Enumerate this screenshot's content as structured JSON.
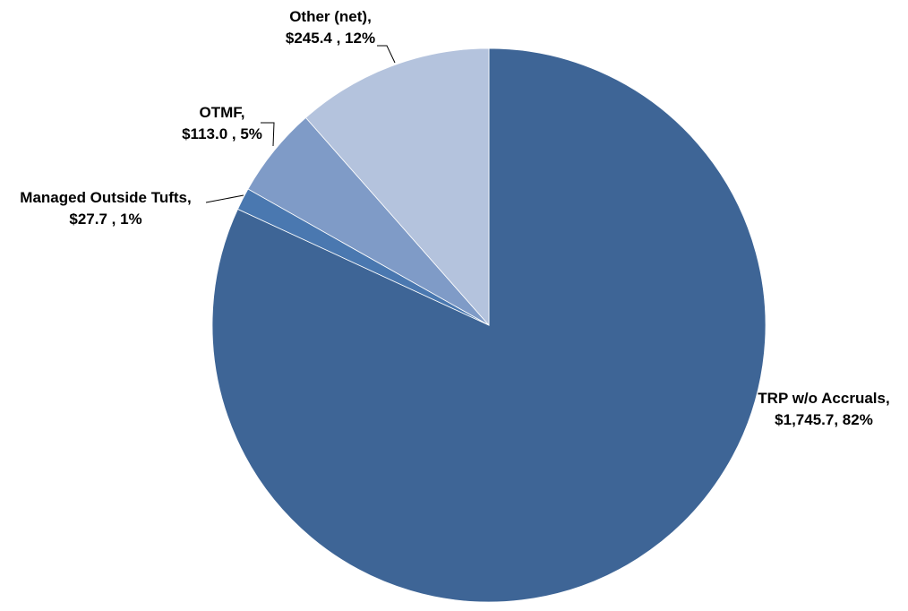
{
  "chart_data": {
    "type": "pie",
    "title": "",
    "slices": [
      {
        "category": "TRP w/o Accruals",
        "value": 1745.7,
        "percent": 82,
        "label_lines": [
          "TRP w/o Accruals,",
          "$1,745.7, 82%"
        ],
        "color": "#3e6596"
      },
      {
        "category": "Managed Outside Tufts",
        "value": 27.7,
        "percent": 1,
        "label_lines": [
          "Managed Outside Tufts,",
          "$27.7 , 1%"
        ],
        "color": "#4a78b0"
      },
      {
        "category": "OTMF",
        "value": 113.0,
        "percent": 5,
        "label_lines": [
          "OTMF,",
          "$113.0 , 5%"
        ],
        "color": "#7f9bc7"
      },
      {
        "category": "Other (net)",
        "value": 245.4,
        "percent": 12,
        "label_lines": [
          "Other (net),",
          "$245.4 , 12%"
        ],
        "color": "#b4c3dd"
      }
    ],
    "start_angle_deg": 0,
    "direction": "clockwise",
    "legend": "none",
    "grid": false
  }
}
